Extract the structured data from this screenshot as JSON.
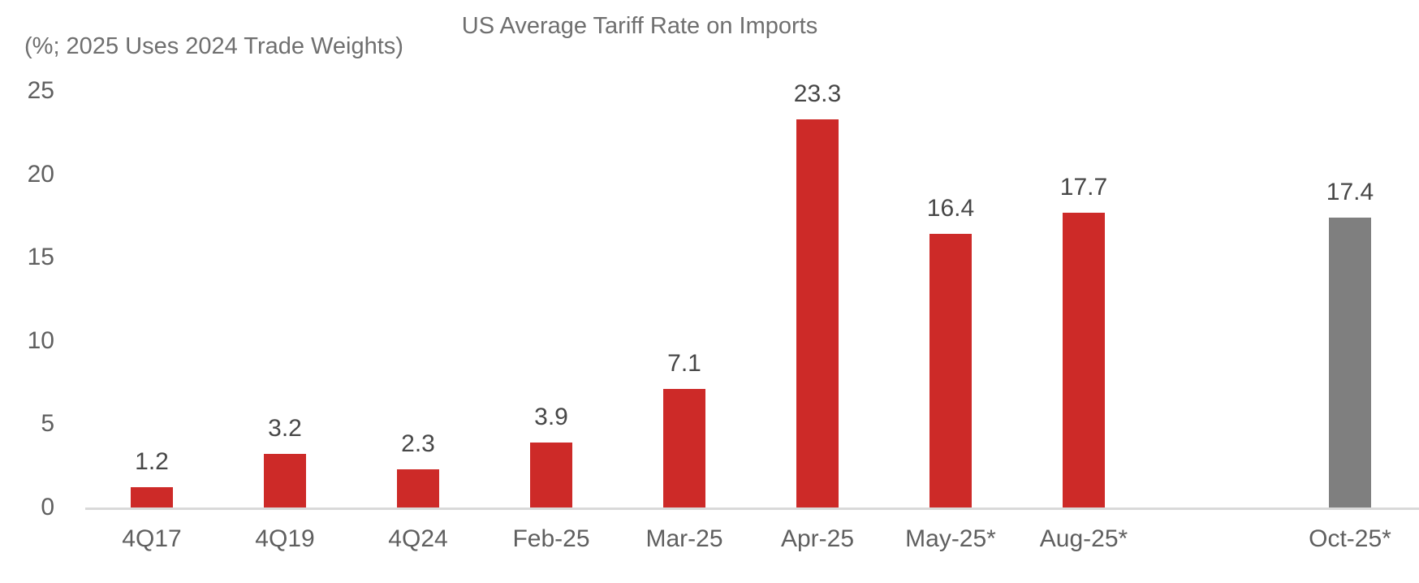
{
  "chart": {
    "title": "US Average Tariff Rate on Imports",
    "subtitle": "(%; 2025 Uses 2024 Trade Weights)"
  },
  "chart_data": {
    "type": "bar",
    "title": "US Average Tariff Rate on Imports",
    "subtitle": "(%; 2025 Uses 2024 Trade Weights)",
    "categories": [
      "4Q17",
      "4Q19",
      "4Q24",
      "Feb-25",
      "Mar-25",
      "Apr-25",
      "May-25*",
      "Aug-25*",
      "",
      "Oct-25*"
    ],
    "bars": [
      {
        "label": "4Q17",
        "value": 1.2,
        "value_label": "1.2",
        "color": "#cd2a28"
      },
      {
        "label": "4Q19",
        "value": 3.2,
        "value_label": "3.2",
        "color": "#cd2a28"
      },
      {
        "label": "4Q24",
        "value": 2.3,
        "value_label": "2.3",
        "color": "#cd2a28"
      },
      {
        "label": "Feb-25",
        "value": 3.9,
        "value_label": "3.9",
        "color": "#cd2a28"
      },
      {
        "label": "Mar-25",
        "value": 7.1,
        "value_label": "7.1",
        "color": "#cd2a28"
      },
      {
        "label": "Apr-25",
        "value": 23.3,
        "value_label": "23.3",
        "color": "#cd2a28"
      },
      {
        "label": "May-25*",
        "value": 16.4,
        "value_label": "16.4",
        "color": "#cd2a28"
      },
      {
        "label": "Aug-25*",
        "value": 17.7,
        "value_label": "17.7",
        "color": "#cd2a28"
      },
      {
        "label": "",
        "value": null,
        "value_label": "",
        "color": null
      },
      {
        "label": "Oct-25*",
        "value": 17.4,
        "value_label": "17.4",
        "color": "#7f7f7f"
      }
    ],
    "ylim": [
      0,
      25
    ],
    "yticks": [
      25,
      20,
      15,
      10,
      5,
      0
    ],
    "xlabel": "",
    "ylabel": "",
    "grid": false,
    "legend": null,
    "data_labels": true,
    "colors": {
      "bar_red": "#cd2a28",
      "bar_gray": "#7f7f7f",
      "axis_line": "#d9d9d9",
      "axis_text": "#5f5f5f",
      "title_text": "#6f6f6f",
      "data_label_text": "#474747"
    }
  }
}
